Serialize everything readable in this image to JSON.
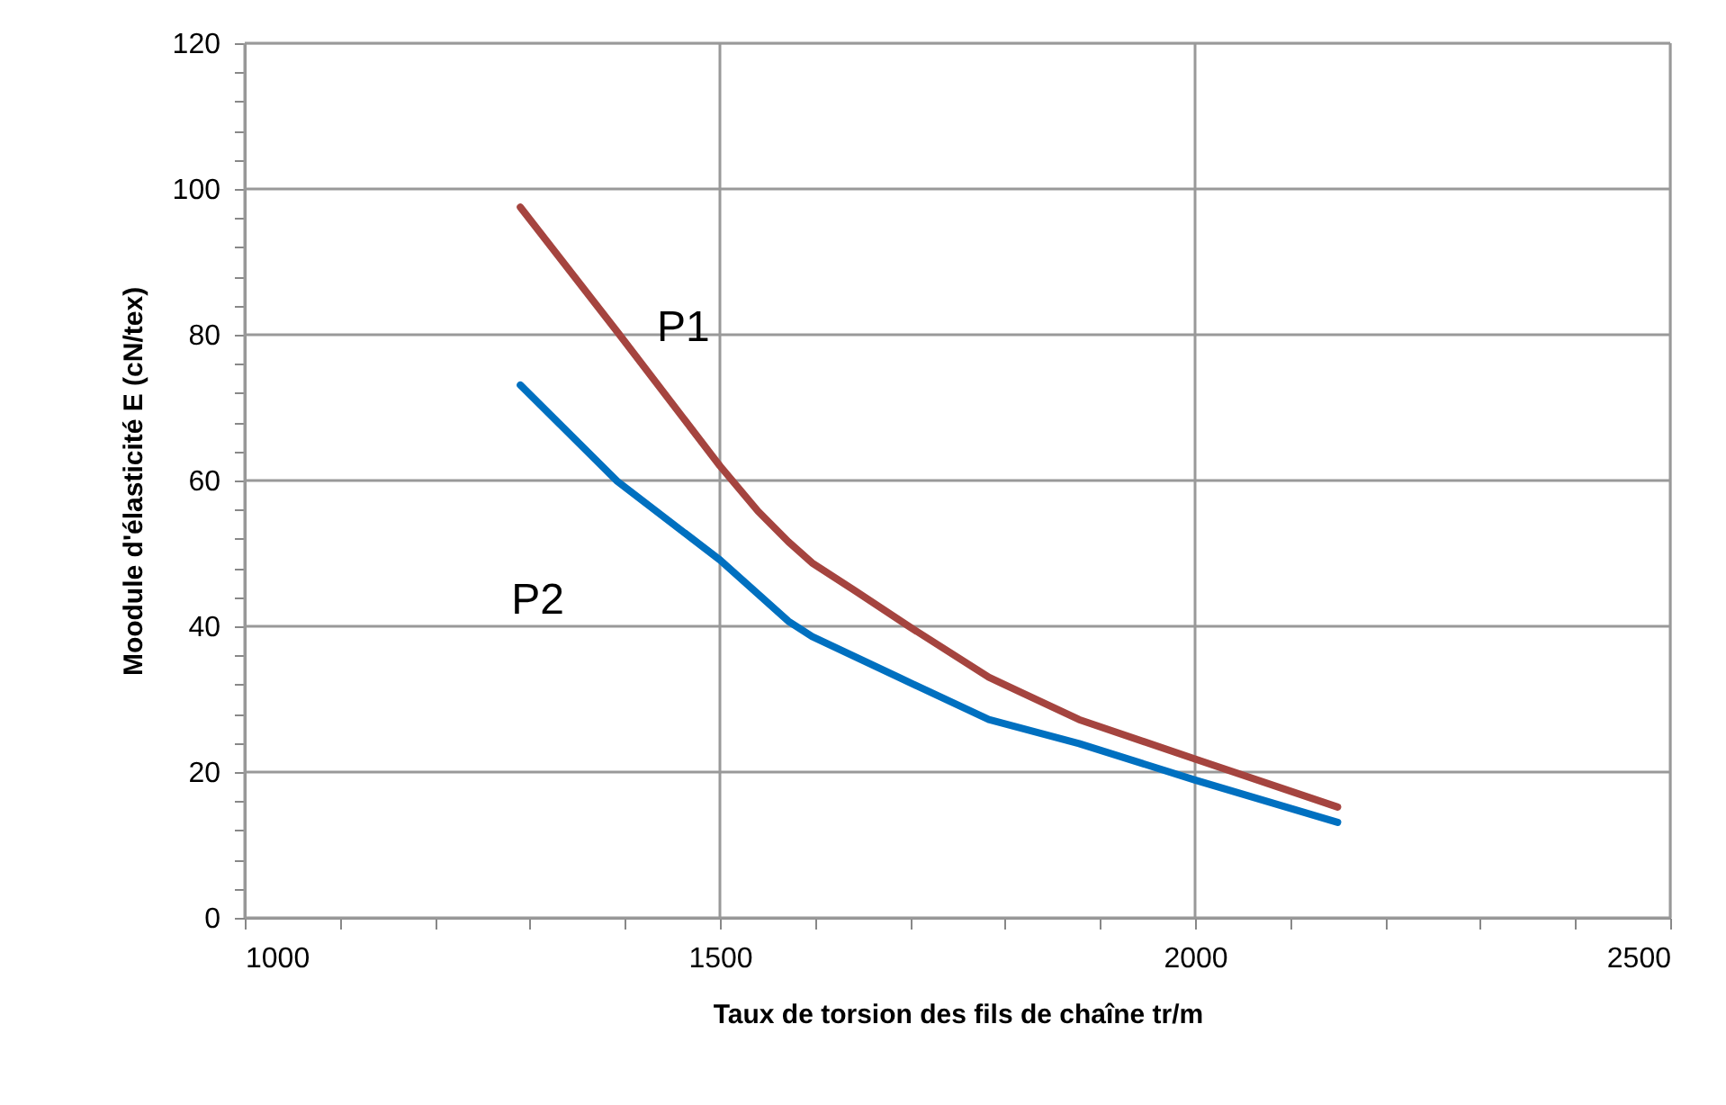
{
  "chart_data": {
    "type": "line",
    "xlabel": "Taux de torsion des fils de chaîne tr/m",
    "ylabel": "Moodule d'élasticité E (cN/tex)",
    "xlim": [
      1000,
      2500
    ],
    "xticks": [
      1000,
      {
        "value": 1100,
        "label": null
      },
      {
        "value": 1200,
        "label": null
      },
      {
        "value": 1300,
        "label": null
      },
      {
        "value": 1400,
        "label": null
      },
      1500,
      {
        "value": 1600,
        "label": null
      },
      {
        "value": 1700,
        "label": null
      },
      {
        "value": 1800,
        "label": null
      },
      {
        "value": 1900,
        "label": null
      },
      2000,
      {
        "value": 2100,
        "label": null
      },
      {
        "value": 2200,
        "label": null
      },
      {
        "value": 2300,
        "label": null
      },
      {
        "value": 2400,
        "label": null
      },
      2500
    ],
    "ylim": [
      0,
      120
    ],
    "yticks": [
      0,
      {
        "value": 4,
        "label": null
      },
      {
        "value": 8,
        "label": null
      },
      {
        "value": 12,
        "label": null
      },
      {
        "value": 16,
        "label": null
      },
      20,
      {
        "value": 24,
        "label": null
      },
      {
        "value": 28,
        "label": null
      },
      {
        "value": 32,
        "label": null
      },
      {
        "value": 36,
        "label": null
      },
      40,
      {
        "value": 44,
        "label": null
      },
      {
        "value": 48,
        "label": null
      },
      {
        "value": 52,
        "label": null
      },
      {
        "value": 56,
        "label": null
      },
      60,
      {
        "value": 64,
        "label": null
      },
      {
        "value": 68,
        "label": null
      },
      {
        "value": 72,
        "label": null
      },
      {
        "value": 76,
        "label": null
      },
      80,
      {
        "value": 84,
        "label": null
      },
      {
        "value": 88,
        "label": null
      },
      {
        "value": 92,
        "label": null
      },
      {
        "value": 96,
        "label": null
      },
      100,
      {
        "value": 104,
        "label": null
      },
      {
        "value": 108,
        "label": null
      },
      {
        "value": 112,
        "label": null
      },
      {
        "value": 116,
        "label": null
      },
      120
    ],
    "grid": true,
    "legend": false,
    "marker": "none",
    "line_style": "solid",
    "series": [
      {
        "name": "P1",
        "color": "#a5443f",
        "x": [
          1290,
          1392,
          1500,
          1540,
          1572,
          1597,
          1642,
          1700,
          1783,
          1878,
          2000,
          2150
        ],
        "values": [
          97.5,
          80.4,
          62,
          55.8,
          51.6,
          48.7,
          44.9,
          39.9,
          33,
          27.2,
          21.8,
          15.2
        ]
      },
      {
        "name": "P2",
        "color": "#0070c0",
        "x": [
          1290,
          1392,
          1500,
          1572,
          1597,
          1688,
          1783,
          1878,
          2000,
          2150
        ],
        "values": [
          73.1,
          59.9,
          49.1,
          40.7,
          38.6,
          33,
          27.2,
          23.9,
          18.9,
          13.1
        ]
      }
    ]
  }
}
